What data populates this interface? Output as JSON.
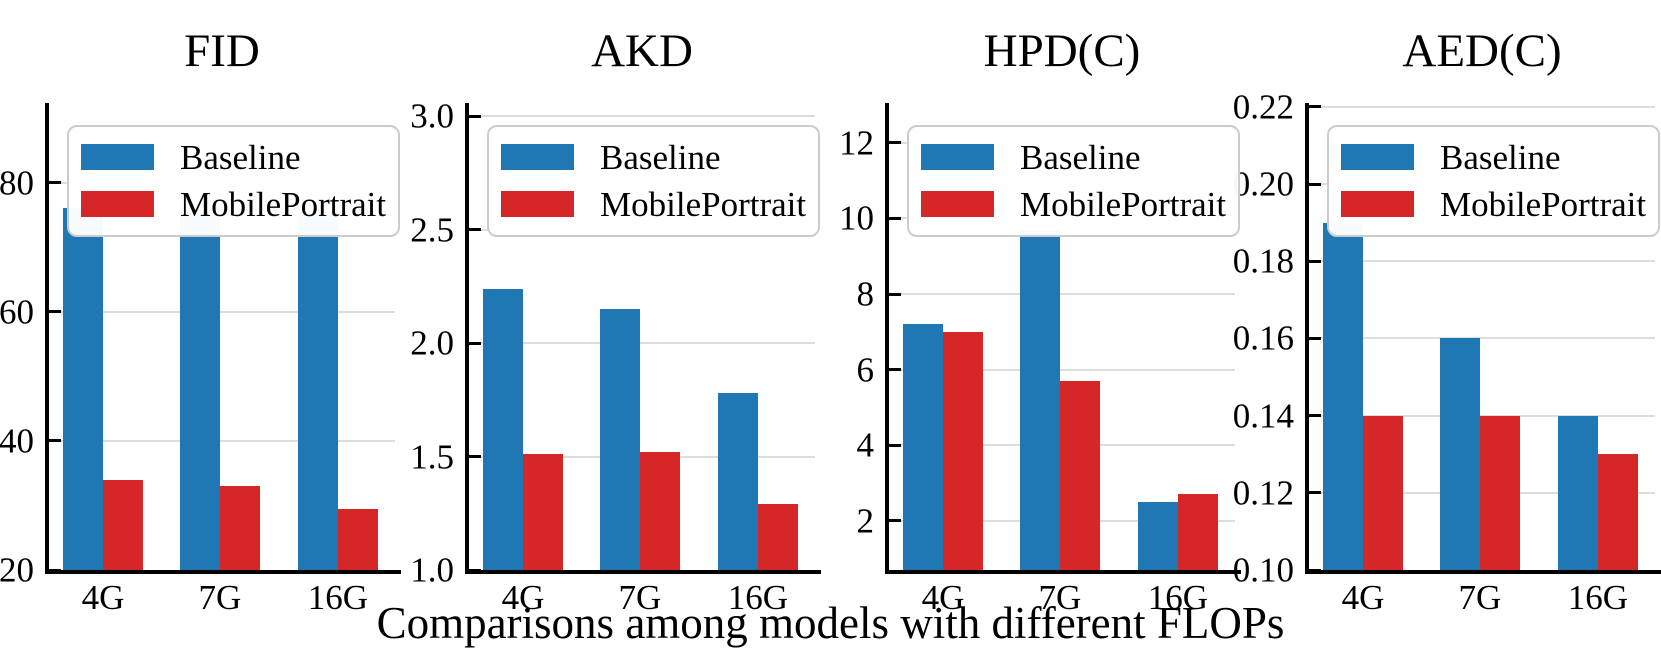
{
  "figure": {
    "caption": "Comparisons among models with different FLOPs",
    "background": "#ffffff"
  },
  "colors": {
    "baseline": "#1f77b4",
    "mobileportrait": "#d62728",
    "grid": "#dcdcdc",
    "axis": "#000000",
    "legend_border": "#cccccc"
  },
  "legend": {
    "position": "upper left",
    "items": [
      {
        "label": "Baseline",
        "color": "#1f77b4"
      },
      {
        "label": "MobilePortrait",
        "color": "#d62728"
      }
    ]
  },
  "chart_data": [
    {
      "type": "bar",
      "title": "FID",
      "categories": [
        "4G",
        "7G",
        "16G"
      ],
      "series": [
        {
          "name": "Baseline",
          "color": "#1f77b4",
          "values": [
            76,
            75.5,
            75.5
          ]
        },
        {
          "name": "MobilePortrait",
          "color": "#d62728",
          "values": [
            34,
            33,
            29.5
          ]
        }
      ],
      "ylim": [
        20,
        92
      ],
      "yticks": [
        20,
        40,
        60,
        80
      ],
      "ytick_labels": [
        "20",
        "40",
        "60",
        "80"
      ],
      "grid": true,
      "legend_position": "upper left"
    },
    {
      "type": "bar",
      "title": "AKD",
      "categories": [
        "4G",
        "7G",
        "16G"
      ],
      "series": [
        {
          "name": "Baseline",
          "color": "#1f77b4",
          "values": [
            2.24,
            2.15,
            1.78
          ]
        },
        {
          "name": "MobilePortrait",
          "color": "#d62728",
          "values": [
            1.51,
            1.52,
            1.29
          ]
        }
      ],
      "ylim": [
        1.0,
        3.05
      ],
      "yticks": [
        1.0,
        1.5,
        2.0,
        2.5,
        3.0
      ],
      "ytick_labels": [
        "1.0",
        "1.5",
        "2.0",
        "2.5",
        "3.0"
      ],
      "grid": true,
      "legend_position": "upper left"
    },
    {
      "type": "bar",
      "title": "HPD(C)",
      "categories": [
        "4G",
        "7G",
        "16G"
      ],
      "series": [
        {
          "name": "Baseline",
          "color": "#1f77b4",
          "values": [
            7.2,
            9.7,
            2.5
          ]
        },
        {
          "name": "MobilePortrait",
          "color": "#d62728",
          "values": [
            7.0,
            5.7,
            2.7
          ]
        }
      ],
      "ylim": [
        0.7,
        13.0
      ],
      "yticks": [
        2,
        4,
        6,
        8,
        10,
        12
      ],
      "ytick_labels": [
        "2",
        "4",
        "6",
        "8",
        "10",
        "12"
      ],
      "grid": true,
      "legend_position": "upper left"
    },
    {
      "type": "bar",
      "title": "AED(C)",
      "categories": [
        "4G",
        "7G",
        "16G"
      ],
      "series": [
        {
          "name": "Baseline",
          "color": "#1f77b4",
          "values": [
            0.19,
            0.16,
            0.14
          ]
        },
        {
          "name": "MobilePortrait",
          "color": "#d62728",
          "values": [
            0.14,
            0.14,
            0.13
          ]
        }
      ],
      "ylim": [
        0.1,
        0.2205
      ],
      "yticks": [
        0.1,
        0.12,
        0.14,
        0.16,
        0.18,
        0.2,
        0.22
      ],
      "ytick_labels": [
        "0.10",
        "0.12",
        "0.14",
        "0.16",
        "0.18",
        "0.20",
        "0.22"
      ],
      "grid": true,
      "legend_position": "upper left"
    }
  ]
}
